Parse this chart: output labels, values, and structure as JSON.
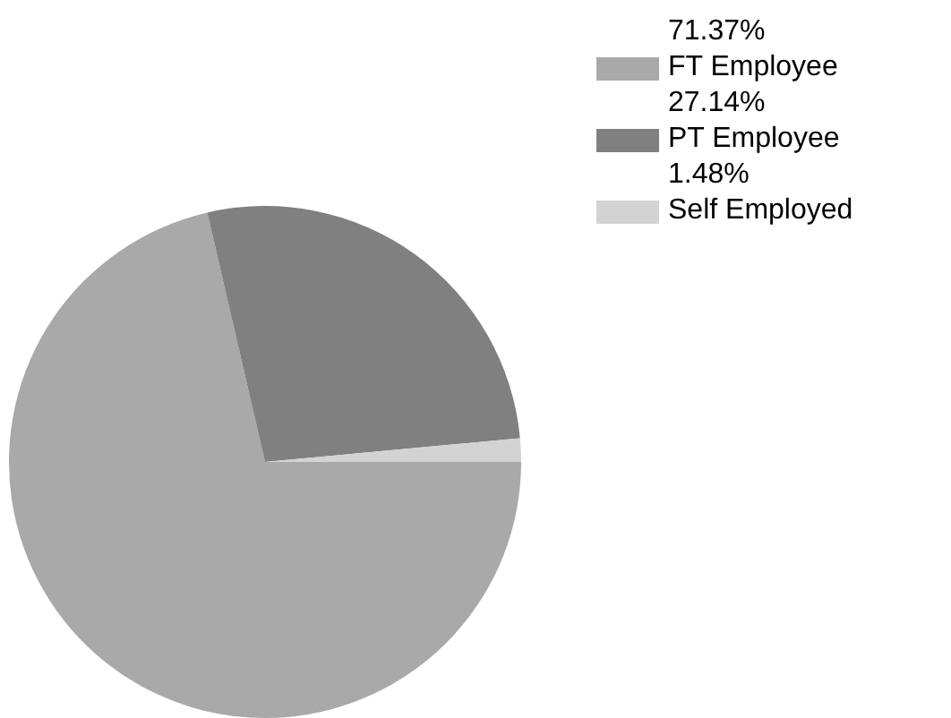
{
  "chart_data": {
    "type": "pie",
    "categories": [
      "FT Employee",
      "PT Employee",
      "Self Employed"
    ],
    "values": [
      71.37,
      27.14,
      1.48
    ],
    "colors": [
      "#a9a9a9",
      "#808080",
      "#d3d3d3"
    ],
    "value_labels": [
      "71.37%",
      "27.14%",
      "1.48%"
    ],
    "legend": "top right"
  }
}
